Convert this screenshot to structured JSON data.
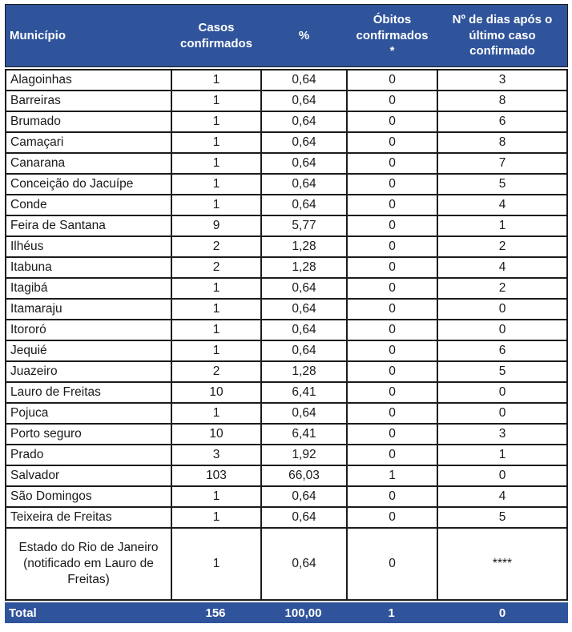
{
  "colors": {
    "band_blue": "#30549B",
    "band_text": "#FFFFFF",
    "border": "#1C1C1C"
  },
  "table": {
    "columns": [
      {
        "label": "Município"
      },
      {
        "label": "Casos confirmados"
      },
      {
        "label": "%"
      },
      {
        "label": "Óbitos confirmados *"
      },
      {
        "label": "Nº de dias após o último caso confirmado"
      }
    ],
    "rows": [
      {
        "municipio": "Alagoinhas",
        "casos": "1",
        "pct": "0,64",
        "obitos": "0",
        "dias": "3",
        "align": "left"
      },
      {
        "municipio": "Barreiras",
        "casos": "1",
        "pct": "0,64",
        "obitos": "0",
        "dias": "8",
        "align": "left"
      },
      {
        "municipio": "Brumado",
        "casos": "1",
        "pct": "0,64",
        "obitos": "0",
        "dias": "6",
        "align": "left"
      },
      {
        "municipio": "Camaçari",
        "casos": "1",
        "pct": "0,64",
        "obitos": "0",
        "dias": "8",
        "align": "left"
      },
      {
        "municipio": "Canarana",
        "casos": "1",
        "pct": "0,64",
        "obitos": "0",
        "dias": "7",
        "align": "left"
      },
      {
        "municipio": "Conceição do Jacuípe",
        "casos": "1",
        "pct": "0,64",
        "obitos": "0",
        "dias": "5",
        "align": "left"
      },
      {
        "municipio": "Conde",
        "casos": "1",
        "pct": "0,64",
        "obitos": "0",
        "dias": "4",
        "align": "left"
      },
      {
        "municipio": "Feira de Santana",
        "casos": "9",
        "pct": "5,77",
        "obitos": "0",
        "dias": "1",
        "align": "left"
      },
      {
        "municipio": "Ilhéus",
        "casos": "2",
        "pct": "1,28",
        "obitos": "0",
        "dias": "2",
        "align": "left"
      },
      {
        "municipio": "Itabuna",
        "casos": "2",
        "pct": "1,28",
        "obitos": "0",
        "dias": "4",
        "align": "left"
      },
      {
        "municipio": "Itagibá",
        "casos": "1",
        "pct": "0,64",
        "obitos": "0",
        "dias": "2",
        "align": "left"
      },
      {
        "municipio": "Itamaraju",
        "casos": "1",
        "pct": "0,64",
        "obitos": "0",
        "dias": "0",
        "align": "left"
      },
      {
        "municipio": "Itororó",
        "casos": "1",
        "pct": "0,64",
        "obitos": "0",
        "dias": "0",
        "align": "left"
      },
      {
        "municipio": "Jequié",
        "casos": "1",
        "pct": "0,64",
        "obitos": "0",
        "dias": "6",
        "align": "left"
      },
      {
        "municipio": "Juazeiro",
        "casos": "2",
        "pct": "1,28",
        "obitos": "0",
        "dias": "5",
        "align": "left"
      },
      {
        "municipio": "Lauro de Freitas",
        "casos": "10",
        "pct": "6,41",
        "obitos": "0",
        "dias": "0",
        "align": "left"
      },
      {
        "municipio": "Pojuca",
        "casos": "1",
        "pct": "0,64",
        "obitos": "0",
        "dias": "0",
        "align": "left"
      },
      {
        "municipio": "Porto seguro",
        "casos": "10",
        "pct": "6,41",
        "obitos": "0",
        "dias": "3",
        "align": "left"
      },
      {
        "municipio": "Prado",
        "casos": "3",
        "pct": "1,92",
        "obitos": "0",
        "dias": "1",
        "align": "left"
      },
      {
        "municipio": "Salvador",
        "casos": "103",
        "pct": "66,03",
        "obitos": "1",
        "dias": "0",
        "align": "left"
      },
      {
        "municipio": "São Domingos",
        "casos": "1",
        "pct": "0,64",
        "obitos": "0",
        "dias": "4",
        "align": "left"
      },
      {
        "municipio": "Teixeira de Freitas",
        "casos": "1",
        "pct": "0,64",
        "obitos": "0",
        "dias": "5",
        "align": "left"
      },
      {
        "municipio": "Estado do Rio de Janeiro (notificado em Lauro de Freitas)",
        "casos": "1",
        "pct": "0,64",
        "obitos": "0",
        "dias": "****",
        "align": "center"
      }
    ],
    "total": {
      "label": "Total",
      "casos": "156",
      "pct": "100,00",
      "obitos": "1",
      "dias": "0"
    }
  }
}
